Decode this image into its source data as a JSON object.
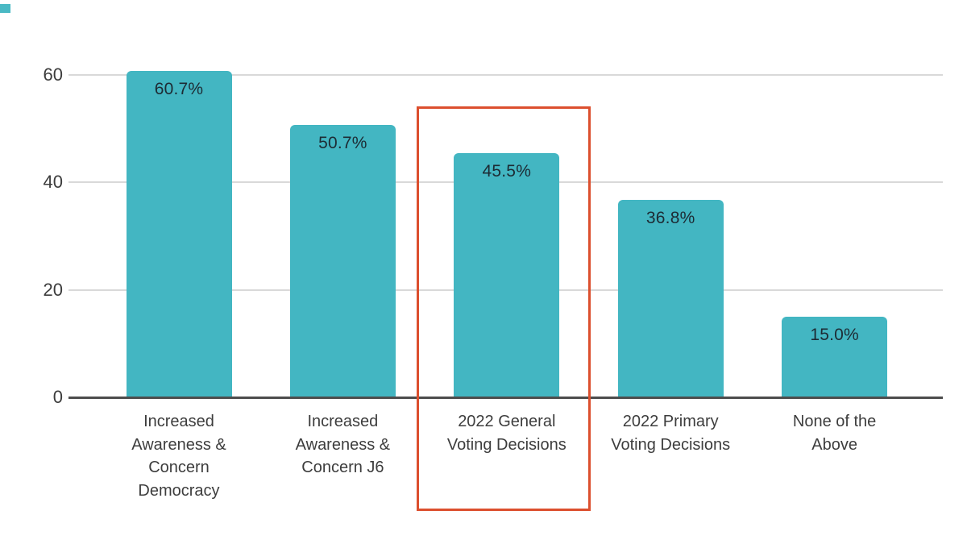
{
  "page": {
    "background": "#ffffff"
  },
  "decorations": {
    "corner_mark_color": "#4ab9c4"
  },
  "chart_data": {
    "type": "bar",
    "title": "",
    "xlabel": "",
    "ylabel": "",
    "categories": [
      "Increased\nAwareness &\nConcern\nDemocracy",
      "Increased\nAwareness &\nConcern J6",
      "2022 General\nVoting Decisions",
      "2022 Primary\nVoting Decisions",
      "None of the\nAbove"
    ],
    "values": [
      60.7,
      50.7,
      45.5,
      36.8,
      15.0
    ],
    "value_labels": [
      "60.7%",
      "50.7%",
      "45.5%",
      "36.8%",
      "15.0%"
    ],
    "ylim": [
      0,
      60
    ],
    "yticks": [
      0,
      20,
      40,
      60
    ],
    "grid": true,
    "legend": false,
    "bar_color": "#43b6c2",
    "value_label_color": "#1d2b34",
    "axis_tick_color": "#3c3c3c",
    "category_label_color": "#3d3d3d",
    "gridline_color": "#d9d9d9",
    "baseline_color": "#4d4d4d",
    "highlight_box": {
      "category_index": 2,
      "category": "2022 General Voting Decisions",
      "color": "#dc4f2e"
    }
  }
}
